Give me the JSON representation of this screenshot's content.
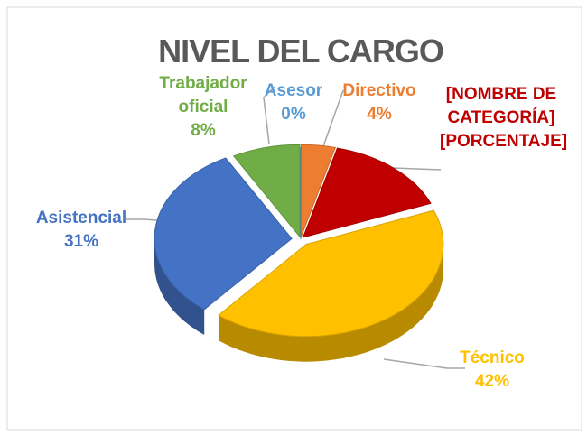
{
  "chart_data": {
    "type": "pie",
    "title": "NIVEL DEL CARGO",
    "categories": [
      "Asesor",
      "Directivo",
      "[NOMBRE DE CATEGORÍA]",
      "Técnico",
      "Asistencial",
      "Trabajador oficial"
    ],
    "values": [
      0,
      4,
      15,
      42,
      31,
      8
    ],
    "value_labels": [
      "0%",
      "4%",
      "[PORCENTAJE]",
      "42%",
      "31%",
      "8%"
    ],
    "colors": [
      "#5b9bd5",
      "#ed7d31",
      "#c00000",
      "#ffc000",
      "#4472c4",
      "#70ad47"
    ]
  }
}
